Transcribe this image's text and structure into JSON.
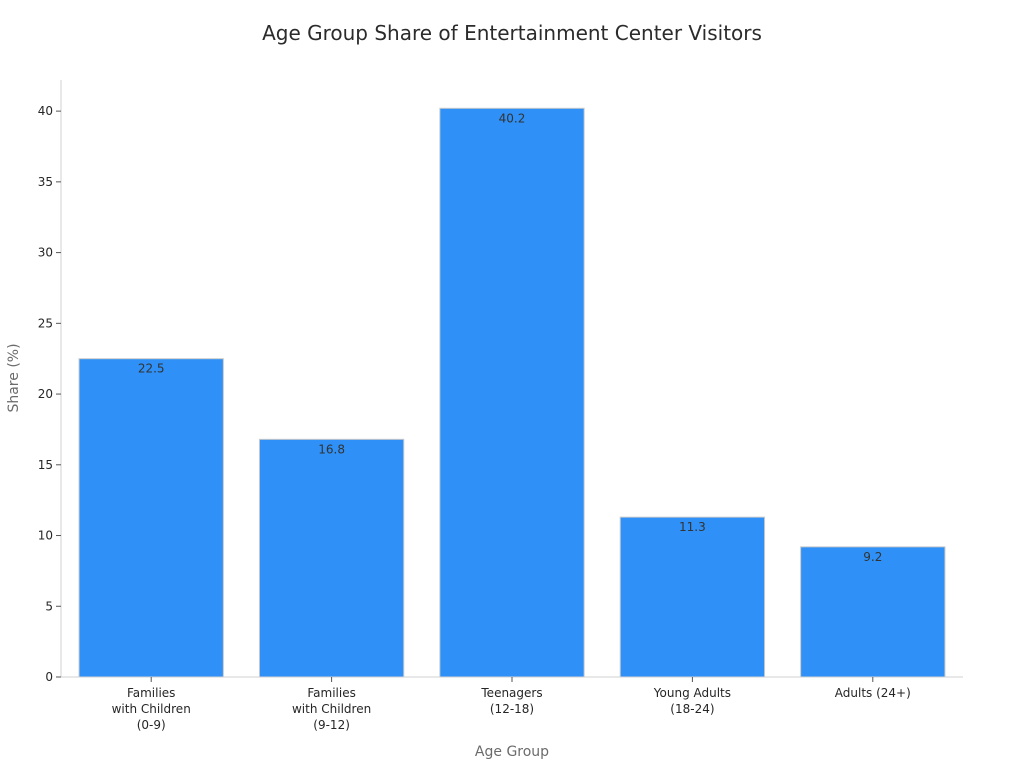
{
  "chart_data": {
    "type": "bar",
    "title": "Age Group Share of Entertainment Center Visitors",
    "xlabel": "Age Group",
    "ylabel": "Share (%)",
    "categories": [
      "Families\nwith Children\n(0-9)",
      "Families\nwith Children\n(9-12)",
      "Teenagers\n(12-18)",
      "Young Adults\n(18-24)",
      "Adults (24+)"
    ],
    "values": [
      22.5,
      16.8,
      40.2,
      11.3,
      9.2
    ],
    "data_labels": [
      "22.5",
      "16.8",
      "40.2",
      "11.3",
      "9.2"
    ],
    "ylim": [
      0,
      42.2
    ],
    "yticks": [
      0,
      5,
      10,
      15,
      20,
      25,
      30,
      35,
      40
    ],
    "grid": false,
    "legend": "none",
    "bar_color": "#2f91f7",
    "bar_edge_color": "#c9c9c9"
  }
}
